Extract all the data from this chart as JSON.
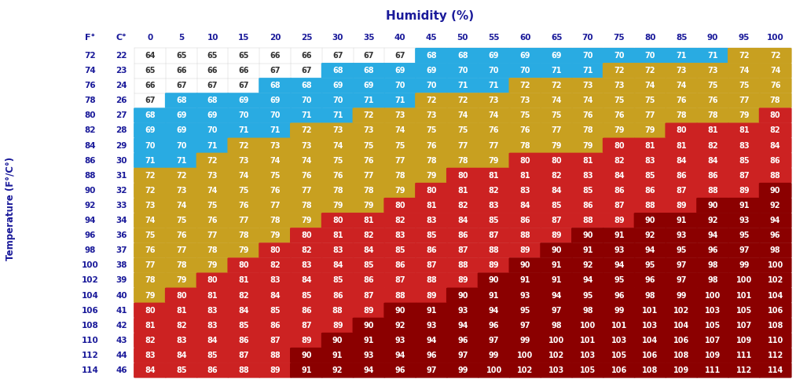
{
  "title": "Humidity (%)",
  "ylabel": "Temperature (F°/C°)",
  "humidity_cols": [
    0,
    5,
    10,
    15,
    20,
    25,
    30,
    35,
    40,
    45,
    50,
    55,
    60,
    65,
    70,
    75,
    80,
    85,
    90,
    95,
    100
  ],
  "temp_rows": [
    [
      72,
      22
    ],
    [
      74,
      23
    ],
    [
      76,
      24
    ],
    [
      78,
      26
    ],
    [
      80,
      27
    ],
    [
      82,
      28
    ],
    [
      84,
      29
    ],
    [
      86,
      30
    ],
    [
      88,
      31
    ],
    [
      90,
      32
    ],
    [
      92,
      33
    ],
    [
      94,
      34
    ],
    [
      96,
      36
    ],
    [
      98,
      37
    ],
    [
      100,
      38
    ],
    [
      102,
      39
    ],
    [
      104,
      40
    ],
    [
      106,
      41
    ],
    [
      108,
      42
    ],
    [
      110,
      43
    ],
    [
      112,
      44
    ],
    [
      114,
      46
    ]
  ],
  "thi_values": [
    [
      64,
      65,
      65,
      65,
      66,
      66,
      67,
      67,
      67,
      68,
      68,
      69,
      69,
      69,
      70,
      70,
      70,
      71,
      71,
      72,
      72
    ],
    [
      65,
      66,
      66,
      66,
      67,
      67,
      68,
      68,
      69,
      69,
      70,
      70,
      70,
      71,
      71,
      72,
      72,
      73,
      73,
      74,
      74
    ],
    [
      66,
      67,
      67,
      67,
      68,
      68,
      69,
      69,
      70,
      70,
      71,
      71,
      72,
      72,
      73,
      73,
      74,
      74,
      75,
      75,
      76
    ],
    [
      67,
      68,
      68,
      69,
      69,
      70,
      70,
      71,
      71,
      72,
      72,
      73,
      73,
      74,
      74,
      75,
      75,
      76,
      76,
      77,
      78
    ],
    [
      68,
      69,
      69,
      70,
      70,
      71,
      71,
      72,
      73,
      73,
      74,
      74,
      75,
      75,
      76,
      76,
      77,
      78,
      78,
      79,
      80
    ],
    [
      69,
      69,
      70,
      71,
      71,
      72,
      73,
      73,
      74,
      75,
      75,
      76,
      76,
      77,
      78,
      79,
      79,
      80,
      81,
      81,
      82
    ],
    [
      70,
      70,
      71,
      72,
      73,
      73,
      74,
      75,
      75,
      76,
      77,
      77,
      78,
      79,
      79,
      80,
      81,
      81,
      82,
      83,
      84
    ],
    [
      71,
      71,
      72,
      73,
      74,
      74,
      75,
      76,
      77,
      78,
      78,
      79,
      80,
      80,
      81,
      82,
      83,
      84,
      84,
      85,
      86
    ],
    [
      72,
      72,
      73,
      74,
      75,
      76,
      76,
      77,
      78,
      79,
      80,
      81,
      81,
      82,
      83,
      84,
      85,
      86,
      86,
      87,
      88
    ],
    [
      72,
      73,
      74,
      75,
      76,
      77,
      78,
      78,
      79,
      80,
      81,
      82,
      83,
      84,
      85,
      86,
      86,
      87,
      88,
      89,
      90
    ],
    [
      73,
      74,
      75,
      76,
      77,
      78,
      79,
      79,
      80,
      81,
      82,
      83,
      84,
      85,
      86,
      87,
      88,
      89,
      90,
      91,
      92
    ],
    [
      74,
      75,
      76,
      77,
      78,
      79,
      80,
      81,
      82,
      83,
      84,
      85,
      86,
      87,
      88,
      89,
      90,
      91,
      92,
      93,
      94
    ],
    [
      75,
      76,
      77,
      78,
      79,
      80,
      81,
      82,
      83,
      85,
      86,
      87,
      88,
      89,
      90,
      91,
      92,
      93,
      94,
      95,
      96
    ],
    [
      76,
      77,
      78,
      79,
      80,
      82,
      83,
      84,
      85,
      86,
      87,
      88,
      89,
      90,
      91,
      93,
      94,
      95,
      96,
      97,
      98
    ],
    [
      77,
      78,
      79,
      80,
      82,
      83,
      84,
      85,
      86,
      87,
      88,
      89,
      90,
      91,
      92,
      94,
      95,
      97,
      98,
      99,
      100
    ],
    [
      78,
      79,
      80,
      81,
      83,
      84,
      85,
      86,
      87,
      88,
      89,
      90,
      91,
      91,
      94,
      95,
      96,
      97,
      98,
      100,
      102
    ],
    [
      79,
      80,
      81,
      82,
      84,
      85,
      86,
      87,
      88,
      89,
      90,
      91,
      93,
      94,
      95,
      96,
      98,
      99,
      100,
      101,
      104
    ],
    [
      80,
      81,
      83,
      84,
      85,
      86,
      88,
      89,
      90,
      91,
      93,
      94,
      95,
      97,
      98,
      99,
      101,
      102,
      103,
      105,
      106
    ],
    [
      81,
      82,
      83,
      85,
      86,
      87,
      89,
      90,
      92,
      93,
      94,
      96,
      97,
      98,
      100,
      101,
      103,
      104,
      105,
      107,
      108
    ],
    [
      82,
      83,
      84,
      86,
      87,
      89,
      90,
      91,
      93,
      94,
      96,
      97,
      99,
      100,
      101,
      103,
      104,
      106,
      107,
      109,
      110
    ],
    [
      83,
      84,
      85,
      87,
      88,
      90,
      91,
      93,
      94,
      96,
      97,
      99,
      100,
      102,
      103,
      105,
      106,
      108,
      109,
      111,
      112
    ],
    [
      84,
      85,
      86,
      88,
      89,
      91,
      92,
      94,
      96,
      97,
      99,
      100,
      102,
      103,
      105,
      106,
      108,
      109,
      111,
      112,
      114
    ]
  ],
  "color_white": "#ffffff",
  "color_blue": "#29abe2",
  "color_yellow": "#c8a020",
  "color_red": "#cc2222",
  "color_darkred": "#8b0000",
  "bg_color": "#ffffff",
  "title_color": "#1a1a9a",
  "header_text_color": "#1a1a9a",
  "cell_text_white": "#ffffff",
  "cell_text_dark": "#333333"
}
